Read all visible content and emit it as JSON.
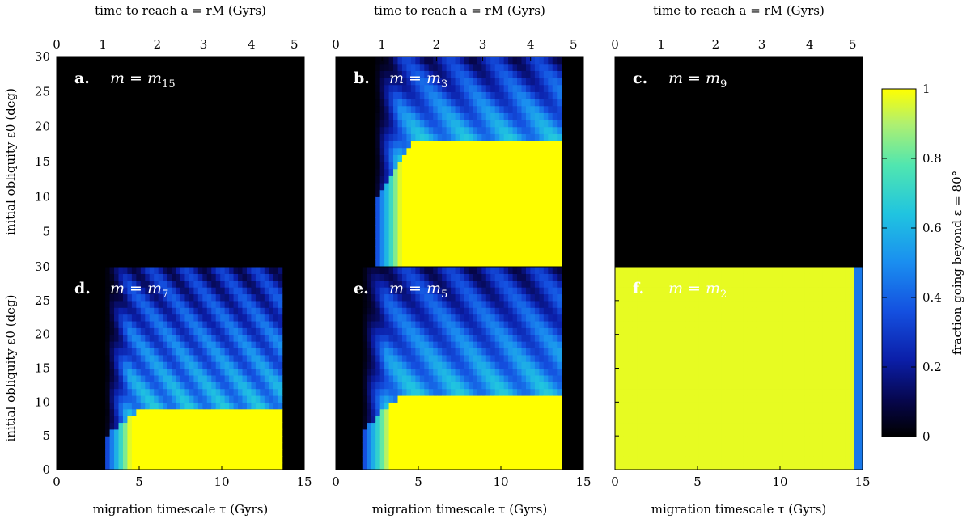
{
  "chart_data": {
    "type": "heatmap",
    "colorbar": {
      "label": "fraction going beyond ε = 80°",
      "ticks": [
        "0",
        "0.2",
        "0.4",
        "0.6",
        "0.8",
        "1"
      ],
      "range": [
        0,
        1
      ]
    },
    "axes": {
      "bottom_label": "migration timescale τ (Gyrs)",
      "top_label": "time to reach a = rM (Gyrs)",
      "left_label": "initial obliquity ε0 (deg)",
      "bottom_ticks": [
        0,
        5,
        10,
        15
      ],
      "left_ticks": [
        0,
        5,
        10,
        15,
        20,
        25,
        30
      ],
      "xlim": [
        0,
        15
      ],
      "ylim": [
        0,
        30
      ],
      "top_tick_labels": [
        "0",
        "1",
        "2",
        "3",
        "4",
        "5"
      ],
      "top_ticks_in_tau": [
        0,
        2.8,
        6.1,
        8.9,
        11.8,
        14.4
      ]
    },
    "panels": [
      {
        "letter": "a.",
        "label": "m = m15",
        "mass_index": "15",
        "x_on": 15,
        "x_off": 15,
        "yellow_top": 0,
        "blue_top": 0,
        "stripes": 0,
        "base": 0
      },
      {
        "letter": "b.",
        "label": "m = m3",
        "mass_index": "3",
        "x_on": 2.4,
        "x_off": 13.6,
        "yellow_top": 18,
        "blue_top": 30,
        "stripes": 4,
        "base": 0
      },
      {
        "letter": "c.",
        "label": "m = m9",
        "mass_index": "9",
        "x_on": 15,
        "x_off": 15,
        "yellow_top": 0,
        "blue_top": 0,
        "stripes": 0,
        "base": 0
      },
      {
        "letter": "d.",
        "label": "m = m7",
        "mass_index": "7",
        "x_on": 3.0,
        "x_off": 13.7,
        "yellow_top": 9,
        "blue_top": 30,
        "stripes": 5,
        "base": 0
      },
      {
        "letter": "e.",
        "label": "m = m5",
        "mass_index": "5",
        "x_on": 1.6,
        "x_off": 13.7,
        "yellow_top": 11,
        "blue_top": 30,
        "stripes": 4,
        "base": 0
      },
      {
        "letter": "f.",
        "label": "m = m2",
        "mass_index": "2",
        "x_on": 0.1,
        "x_off": 14.9,
        "yellow_top": 30,
        "blue_top": 30,
        "stripes": 0,
        "base": 0.97
      }
    ]
  }
}
